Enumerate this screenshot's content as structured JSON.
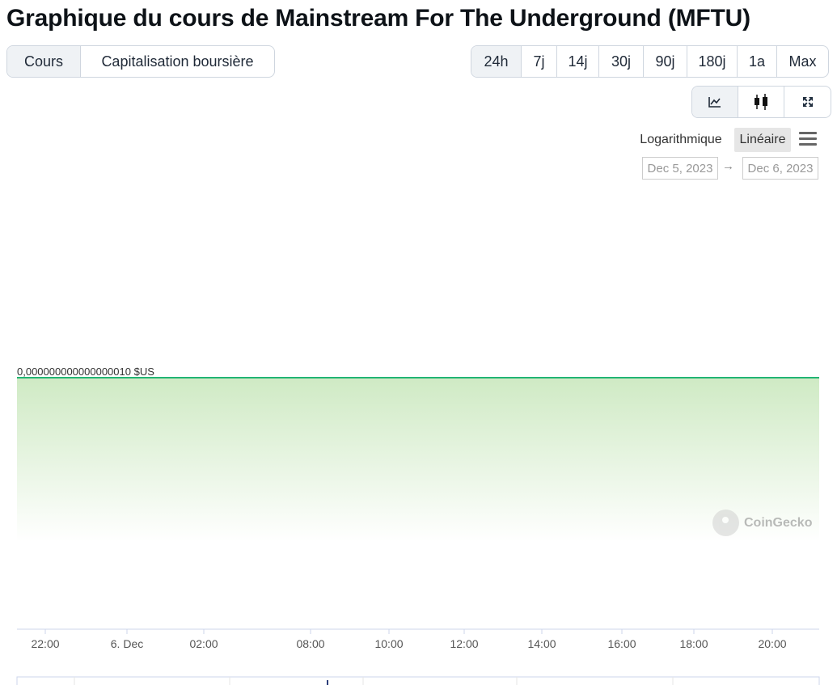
{
  "page": {
    "title": "Graphique du cours de Mainstream For The Underground (MFTU)"
  },
  "tabs": [
    {
      "label": "Cours",
      "active": true
    },
    {
      "label": "Capitalisation boursière",
      "active": false
    }
  ],
  "ranges": [
    {
      "label": "24h",
      "active": true
    },
    {
      "label": "7j",
      "active": false
    },
    {
      "label": "14j",
      "active": false
    },
    {
      "label": "30j",
      "active": false
    },
    {
      "label": "90j",
      "active": false
    },
    {
      "label": "180j",
      "active": false
    },
    {
      "label": "1a",
      "active": false
    },
    {
      "label": "Max",
      "active": false
    }
  ],
  "chart_types": [
    {
      "icon": "line-chart-icon",
      "active": true
    },
    {
      "icon": "candlestick-icon",
      "active": false
    },
    {
      "icon": "expand-icon",
      "active": false
    }
  ],
  "scale": {
    "log_label": "Logarithmique",
    "linear_label": "Linéaire",
    "selected": "linear"
  },
  "date_range": {
    "from": "Dec 5, 2023",
    "to": "Dec 6, 2023",
    "arrow": "→"
  },
  "watermark": {
    "text": "CoinGecko"
  },
  "chart_data": {
    "type": "area",
    "title": "",
    "xlabel": "",
    "ylabel": "",
    "x_ticks": [
      "22:00",
      "6. Dec",
      "02:00",
      "08:00",
      "10:00",
      "12:00",
      "14:00",
      "16:00",
      "18:00",
      "20:00"
    ],
    "series": [
      {
        "values": [
          1e-17,
          1e-17,
          1e-17,
          1e-17,
          1e-17,
          1e-17,
          1e-17,
          1e-17,
          1e-17,
          1e-17,
          1e-17
        ]
      }
    ],
    "price_label": "0,000000000000000010 $US",
    "line_color": "#22b573",
    "fill_color": "#d7efcd",
    "scale": "linear",
    "grid": false
  }
}
